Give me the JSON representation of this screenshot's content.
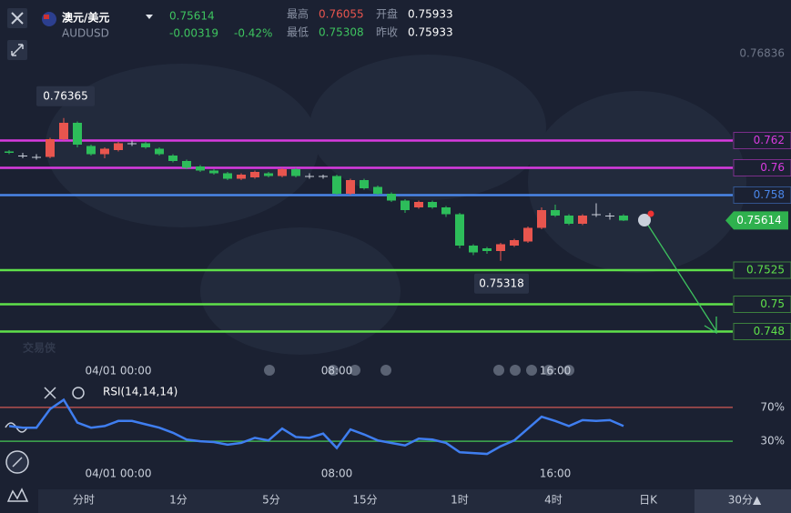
{
  "header": {
    "pair": "澳元/美元",
    "symbol": "AUDUSD",
    "change": "-0.00319",
    "change_pct": "-0.42%",
    "stats": [
      {
        "label": "最高",
        "value": "0.76055"
      },
      {
        "label": "开盘",
        "value": "0.75933"
      },
      {
        "label": "最低",
        "value": "0.75308"
      },
      {
        "label": "昨收",
        "value": "0.75933"
      }
    ]
  },
  "watermark": "交易侠",
  "chart_data": [
    {
      "type": "candlestick",
      "up_color": "#e8554e",
      "down_color": "#2dbd5a",
      "categories": [
        null,
        null,
        null,
        null,
        null,
        null,
        null,
        null,
        "04/01 00:00",
        null,
        null,
        null,
        null,
        null,
        null,
        null,
        null,
        null,
        null,
        null,
        null,
        null,
        null,
        null,
        "08:00",
        null,
        null,
        null,
        null,
        null,
        null,
        null,
        null,
        null,
        null,
        null,
        null,
        null,
        null,
        null,
        "16:00",
        null,
        null,
        null,
        null,
        null
      ],
      "open": [
        0.7612,
        0.7609,
        0.7608,
        0.7608,
        0.7621,
        0.7633,
        0.7616,
        0.761,
        0.7613,
        0.7618,
        0.7618,
        0.7614,
        0.7609,
        0.7605,
        0.7601,
        0.7598,
        0.7596,
        0.7592,
        0.7593,
        0.7596,
        0.7594,
        0.7599,
        0.7594,
        0.7594,
        0.7594,
        0.7581,
        0.7591,
        0.7586,
        0.7581,
        0.7576,
        0.7571,
        0.7575,
        0.7571,
        0.7566,
        0.7543,
        0.7541,
        0.7539,
        0.7543,
        0.7546,
        0.7556,
        0.7569,
        0.7565,
        0.7559,
        0.7566,
        0.7565,
        0.7565
      ],
      "high": [
        0.7613,
        0.7611,
        0.761,
        0.7622,
        0.76365,
        0.7634,
        0.7617,
        0.7615,
        0.7619,
        0.762,
        0.7619,
        0.7615,
        0.761,
        0.7606,
        0.7602,
        0.7599,
        0.7597,
        0.7596,
        0.7598,
        0.7597,
        0.76,
        0.76,
        0.7596,
        0.7595,
        0.7595,
        0.7592,
        0.7592,
        0.7587,
        0.7582,
        0.7577,
        0.7576,
        0.7576,
        0.7572,
        0.7567,
        0.7544,
        0.7542,
        0.7545,
        0.7548,
        0.7557,
        0.7571,
        0.7573,
        0.7566,
        0.7566,
        0.7574,
        0.7567,
        0.7566
      ],
      "low": [
        0.761,
        0.7607,
        0.7606,
        0.7607,
        0.762,
        0.7615,
        0.7609,
        0.7607,
        0.7612,
        0.7616,
        0.7614,
        0.7609,
        0.7604,
        0.7599,
        0.7597,
        0.7595,
        0.7591,
        0.7591,
        0.7592,
        0.7593,
        0.7593,
        0.7593,
        0.7592,
        0.7592,
        0.758,
        0.758,
        0.7584,
        0.758,
        0.7575,
        0.7567,
        0.757,
        0.757,
        0.7564,
        0.7541,
        0.7536,
        0.7537,
        0.75318,
        0.7542,
        0.7545,
        0.7555,
        0.7564,
        0.7558,
        0.7558,
        0.7564,
        0.7562,
        0.7561
      ],
      "close": [
        0.7611,
        0.7609,
        0.7608,
        0.7621,
        0.7633,
        0.7617,
        0.761,
        0.7614,
        0.7618,
        0.7618,
        0.7615,
        0.761,
        0.7605,
        0.76,
        0.7598,
        0.7596,
        0.7592,
        0.7595,
        0.7597,
        0.7594,
        0.7599,
        0.7594,
        0.7594,
        0.7594,
        0.7581,
        0.7591,
        0.7585,
        0.7581,
        0.7576,
        0.7569,
        0.7575,
        0.7571,
        0.7566,
        0.7543,
        0.7538,
        0.7539,
        0.7544,
        0.7547,
        0.7556,
        0.7569,
        0.7565,
        0.7559,
        0.7565,
        0.7566,
        0.7565,
        0.75614
      ],
      "ylim": [
        0.7459,
        0.7723
      ],
      "yticks": [
        0.76836
      ],
      "levels": [
        {
          "value": 0.762,
          "color": "#d93be0"
        },
        {
          "value": 0.76,
          "color": "#d93be0"
        },
        {
          "value": 0.758,
          "color": "#4a86e8"
        },
        {
          "value": 0.7525,
          "color": "#5fe04a"
        },
        {
          "value": 0.75,
          "color": "#5fe04a"
        },
        {
          "value": 0.748,
          "color": "#5fe04a"
        }
      ]
    },
    {
      "type": "line",
      "title": "RSI(14,14,14)",
      "color": "#3f7ef0",
      "values": [
        48,
        46,
        46,
        68,
        79,
        52,
        46,
        48,
        54,
        54,
        50,
        46,
        40,
        32,
        30,
        29,
        26,
        28,
        34,
        31,
        45,
        35,
        34,
        39,
        22,
        44,
        38,
        31,
        28,
        25,
        33,
        32,
        28,
        17,
        16,
        15,
        24,
        31,
        45,
        59,
        54,
        48,
        55,
        54,
        55,
        48
      ],
      "ylim": [
        0,
        100
      ],
      "yticks": [
        {
          "value": 70,
          "label": "70%",
          "color": "#b4504f"
        },
        {
          "value": 30,
          "label": "30%",
          "color": "#3fae4f"
        }
      ]
    }
  ],
  "timeframes": [
    "分时",
    "1分",
    "5分",
    "15分",
    "1时",
    "4时",
    "日K",
    "30分▲"
  ]
}
